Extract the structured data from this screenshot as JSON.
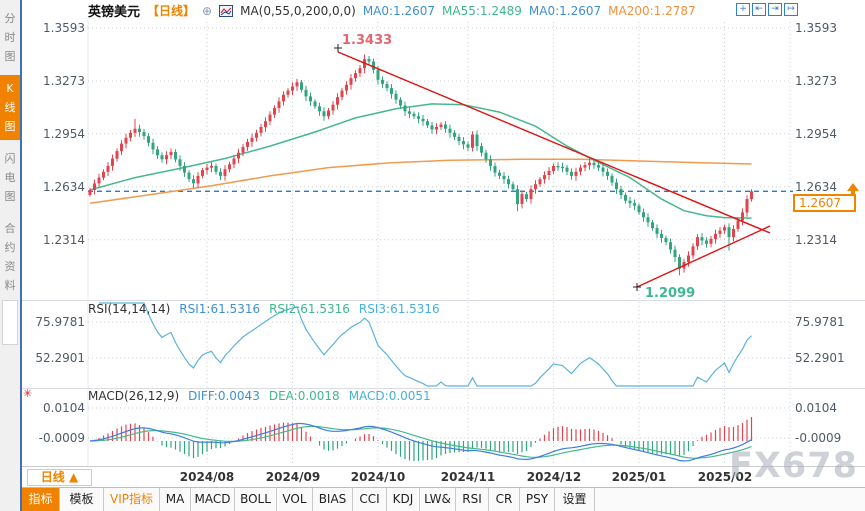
{
  "sidebar": {
    "items": [
      {
        "label": "分时图",
        "active": false
      },
      {
        "label": "K线图",
        "active": true
      },
      {
        "label": "闪电图",
        "active": false
      },
      {
        "label": "合约资料",
        "active": false
      }
    ]
  },
  "header": {
    "symbol": "英镑美元",
    "period": "【日线】",
    "overlay_icon": "⊕",
    "ma_formula": "MA(0,55,0,200,0,0)",
    "ma_values": [
      {
        "label": "MA0:1.2607"
      },
      {
        "label": "MA55:1.2489"
      },
      {
        "label": "MA0:1.2607"
      },
      {
        "label": "MA200:1.2787"
      }
    ]
  },
  "toolbar": {
    "icons": [
      {
        "name": "crosshair-icon",
        "glyph": "+"
      },
      {
        "name": "scale-left-icon",
        "glyph": "⇤"
      },
      {
        "name": "scale-right-icon",
        "glyph": "⇥"
      },
      {
        "name": "export-icon",
        "glyph": "↦"
      }
    ]
  },
  "price_axis": {
    "left": [
      "1.3593",
      "1.3273",
      "1.2954",
      "1.2634",
      "1.2314"
    ],
    "right": [
      "1.3593",
      "1.3273",
      "1.2954",
      "1.2634",
      "1.2314"
    ],
    "current": "1.2607"
  },
  "annotations": {
    "high": "1.3433",
    "low": "1.2099"
  },
  "rsi": {
    "title": "RSI(14,14,14)",
    "values": [
      "RSI1:61.5316",
      "RSI2:61.5316",
      "RSI3:61.5316"
    ],
    "axis": [
      "75.9781",
      "52.2901"
    ]
  },
  "macd": {
    "title": "MACD(26,12,9)",
    "values": [
      "DIFF:0.0043",
      "DEA:0.0018",
      "MACD:0.0051"
    ],
    "axis": [
      "0.0104",
      "-0.0009"
    ]
  },
  "time_axis": {
    "period_label": "日线 ▲",
    "months": [
      "2024/08",
      "2024/09",
      "2024/10",
      "2024/11",
      "2024/12",
      "2025/01",
      "2025/02"
    ]
  },
  "tabs": [
    {
      "label": "指标"
    },
    {
      "label": "模板"
    },
    {
      "label": "VIP指标"
    },
    {
      "label": "MA"
    },
    {
      "label": "MACD"
    },
    {
      "label": "BOLL"
    },
    {
      "label": "VOL"
    },
    {
      "label": "BIAS"
    },
    {
      "label": "CCI"
    },
    {
      "label": "KDJ"
    },
    {
      "label": "LW&"
    },
    {
      "label": "RSI"
    },
    {
      "label": "CR"
    },
    {
      "label": "PSY"
    },
    {
      "label": "设置"
    }
  ],
  "watermark": "FX678",
  "colors": {
    "accent_orange": "#f08200",
    "bull_red": "#e0454e",
    "bear_green": "#31a57e",
    "ma55": "#45b98c",
    "ma200": "#f29a4e",
    "trendline": "#e01212",
    "current_price_line": "#1e7be0",
    "rsi_line": "#5bb3dd",
    "diff_line": "#3f7de0",
    "dea_line": "#45b98c"
  },
  "chart_data": {
    "type": "candlestick",
    "title": "英镑美元 日线 (GBP/USD daily)",
    "symbol": "英镑美元",
    "period": "日线",
    "ylim": [
      1.21,
      1.36
    ],
    "price_gridlines": [
      1.3593,
      1.3273,
      1.2954,
      1.2634,
      1.2314
    ],
    "current_price": 1.2607,
    "high_annotation": 1.3433,
    "low_annotation": 1.2099,
    "first_open": 1.2585,
    "closes": [
      1.2615,
      1.2655,
      1.269,
      1.2725,
      1.276,
      1.2805,
      1.285,
      1.2895,
      1.293,
      1.296,
      1.2985,
      1.2965,
      1.294,
      1.29,
      1.286,
      1.2825,
      1.28,
      1.2825,
      1.2845,
      1.28,
      1.276,
      1.272,
      1.268,
      1.2655,
      1.27,
      1.2735,
      1.275,
      1.276,
      1.2725,
      1.27,
      1.274,
      1.277,
      1.2805,
      1.284,
      1.2875,
      1.2905,
      1.293,
      1.296,
      1.2995,
      1.303,
      1.307,
      1.311,
      1.315,
      1.319,
      1.3215,
      1.324,
      1.3265,
      1.322,
      1.318,
      1.315,
      1.312,
      1.309,
      1.306,
      1.3095,
      1.313,
      1.3175,
      1.3215,
      1.325,
      1.329,
      1.332,
      1.335,
      1.3405,
      1.339,
      1.334,
      1.328,
      1.3255,
      1.323,
      1.3195,
      1.316,
      1.3125,
      1.309,
      1.3075,
      1.306,
      1.3045,
      1.303,
      1.3005,
      1.298,
      1.2995,
      1.301,
      1.2985,
      1.296,
      1.2935,
      1.291,
      1.289,
      1.287,
      1.295,
      1.288,
      1.284,
      1.28,
      1.276,
      1.272,
      1.27,
      1.268,
      1.265,
      1.262,
      1.253,
      1.259,
      1.256,
      1.262,
      1.265,
      1.268,
      1.2705,
      1.273,
      1.276,
      1.2755,
      1.275,
      1.2725,
      1.27,
      1.2725,
      1.275,
      1.2765,
      1.278,
      1.2765,
      1.275,
      1.2725,
      1.27,
      1.266,
      1.262,
      1.2585,
      1.255,
      1.2535,
      1.252,
      1.248,
      1.245,
      1.242,
      1.2385,
      1.235,
      1.2325,
      1.23,
      1.2255,
      1.221,
      1.214,
      1.218,
      1.222,
      1.2275,
      1.233,
      1.231,
      1.229,
      1.232,
      1.235,
      1.237,
      1.239,
      1.233,
      1.238,
      1.243,
      1.248,
      1.256,
      1.2607
    ],
    "wick_overrides": {
      "0": {
        "l": 1.2575
      },
      "10": {
        "h": 1.3044
      },
      "61": {
        "h": 1.3433
      },
      "95": {
        "l": 1.2487
      },
      "131": {
        "l": 1.2099
      },
      "142": {
        "l": 1.2249
      }
    },
    "ma55": [
      [
        0,
        1.2615
      ],
      [
        10,
        1.269
      ],
      [
        20,
        1.2745
      ],
      [
        30,
        1.2805
      ],
      [
        40,
        1.288
      ],
      [
        50,
        1.2965
      ],
      [
        59,
        1.305
      ],
      [
        68,
        1.3105
      ],
      [
        76,
        1.3135
      ],
      [
        83,
        1.313
      ],
      [
        91,
        1.3085
      ],
      [
        99,
        1.3
      ],
      [
        106,
        1.288
      ],
      [
        112,
        1.2795
      ],
      [
        120,
        1.269
      ],
      [
        127,
        1.256
      ],
      [
        132,
        1.249
      ],
      [
        137,
        1.246
      ],
      [
        141,
        1.2448
      ],
      [
        147,
        1.2445
      ]
    ],
    "ma200": [
      [
        0,
        1.2535
      ],
      [
        13,
        1.2585
      ],
      [
        27,
        1.264
      ],
      [
        40,
        1.27
      ],
      [
        53,
        1.275
      ],
      [
        67,
        1.278
      ],
      [
        80,
        1.2795
      ],
      [
        96,
        1.28
      ],
      [
        109,
        1.28
      ],
      [
        122,
        1.279
      ],
      [
        136,
        1.278
      ],
      [
        147,
        1.2772
      ]
    ],
    "trendlines": [
      {
        "x1": 338,
        "y1": 52,
        "x2": 770,
        "y2": 233
      },
      {
        "x1": 637,
        "y1": 287,
        "x2": 770,
        "y2": 226
      }
    ],
    "anchor_points": [
      [
        338,
        48
      ],
      [
        637,
        287
      ]
    ],
    "month_indices": [
      26,
      45,
      64,
      84,
      103,
      122,
      141
    ],
    "rsi_params": {
      "periods": [
        14,
        14,
        14
      ],
      "last_values": [
        61.5316,
        61.5316,
        61.5316
      ],
      "axis_values": [
        75.9781,
        52.2901
      ]
    },
    "macd_params": {
      "slow": 26,
      "fast": 12,
      "signal": 9,
      "diff": 0.0043,
      "dea": 0.0018,
      "macd": 0.0051,
      "axis_values": [
        0.0104,
        -0.0009
      ]
    }
  }
}
